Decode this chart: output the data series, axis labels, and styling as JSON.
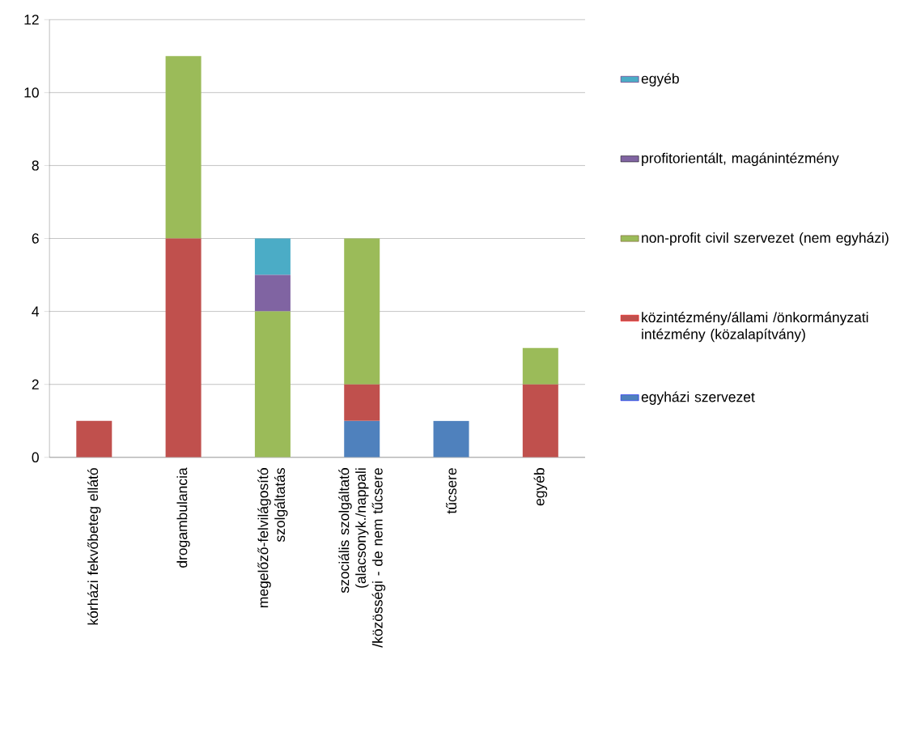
{
  "chart_data": {
    "type": "bar",
    "stacked": true,
    "categories": [
      "kórházi fekvőbeteg ellátó",
      "drogambulancia",
      "megelőző-felvilágosító szolgáltatás",
      "szociális szolgáltató (alacsonyk./nappali /közösségi - de nem tűcsere",
      "tűcsere",
      "egyéb"
    ],
    "series": [
      {
        "name": "egyházi szervezet",
        "color": "#4f81bd",
        "values": [
          0,
          0,
          0,
          1,
          1,
          0
        ]
      },
      {
        "name": "közintézmény/állami /önkormányzati intézmény (közalapítvány)",
        "color": "#c0504d",
        "values": [
          1,
          6,
          0,
          1,
          0,
          2
        ]
      },
      {
        "name": "non-profit civil szervezet (nem egyházi)",
        "color": "#9bbb59",
        "values": [
          0,
          5,
          4,
          4,
          0,
          1
        ]
      },
      {
        "name": "profitorientált, magánintézmény",
        "color": "#8064a2",
        "values": [
          0,
          0,
          1,
          0,
          0,
          0
        ]
      },
      {
        "name": "egyéb",
        "color": "#4bacc6",
        "values": [
          0,
          0,
          1,
          0,
          0,
          0
        ]
      }
    ],
    "ylim": [
      0,
      12
    ],
    "yticks": [
      0,
      2,
      4,
      6,
      8,
      10,
      12
    ],
    "grid": "y",
    "legend": "right"
  }
}
